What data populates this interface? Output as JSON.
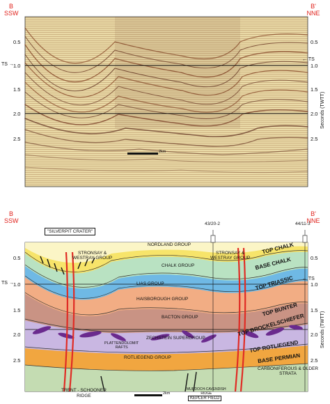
{
  "top_panel": {
    "left_label": [
      "B",
      "SSW"
    ],
    "right_label": [
      "B'",
      "NNE"
    ],
    "y_ticks": [
      "0.5",
      "1.0",
      "1.5",
      "2.0",
      "2.5"
    ],
    "ts_left": "TS",
    "ts_right": "TS",
    "axis_title": "Seconds (TWTT)",
    "scale_label": "2km"
  },
  "bottom_panel": {
    "left_label": [
      "B",
      "SSW"
    ],
    "right_label": [
      "B'",
      "NNE"
    ],
    "y_ticks": [
      "0.5",
      "1.0",
      "1.5",
      "2.0",
      "2.5"
    ],
    "ts_left": "TS",
    "ts_right": "TS",
    "axis_title": "Seconds (TWTT)",
    "well_1": "43/20-2",
    "well_2": "44/11-3",
    "crater_label": "\"SILVERPIT CRATER\"",
    "scale_label": "2km",
    "layers": {
      "nordland": "NORDLAND GROUP",
      "stronsay_left": "STRONSAY &\nWESTRAY GROUP",
      "stronsay_right": "STRONSAY &\nWESTRAY GROUP",
      "top_chalk": "TOP CHALK",
      "base_chalk": "BASE CHALK",
      "chalk": "CHALK GROUP",
      "lias": "LIAS GROUP",
      "top_triassic": "TOP TRIASSIC",
      "haisborough": "HAISBOROUGH GROUP",
      "top_bunter": "TOP BUNTER",
      "bacton": "BACTON GROUP",
      "top_brockelschiefer": "TOP BROCKELSCHIEFER",
      "zechstein": "ZECHSTEIN SUPERGROUP",
      "platten": "PLATTENDOLOMIT\nRAFTS",
      "top_rotliegend": "TOP ROTLIEGEND",
      "base_permian": "BASE PERMIAN",
      "rotliegend": "ROTLIEGEND GROUP",
      "carboniferous": "CARBONIFEROUS & OLDER\nSTRATA"
    },
    "ridge_left": "TRENT - SCHOONER\nRIDGE",
    "ridge_right": "MURDOCH-CAVENDISH\nRIDGE",
    "field": "KEPLER FIELD"
  },
  "colors": {
    "red_label": "#e0201a",
    "nordland": "#fbf5c6",
    "stronsay": "#f7e46a",
    "chalk": "#b9e2c2",
    "lias": "#5fb2d8",
    "triassic": "#6fb9e5",
    "haisborough": "#f2ad84",
    "bacton": "#c99384",
    "zechstein": "#c9b7e2",
    "halite": "#6a2a8e",
    "rotliegend": "#f1a640",
    "carboniferous": "#c4dcb2",
    "fault": "#e02b24"
  }
}
